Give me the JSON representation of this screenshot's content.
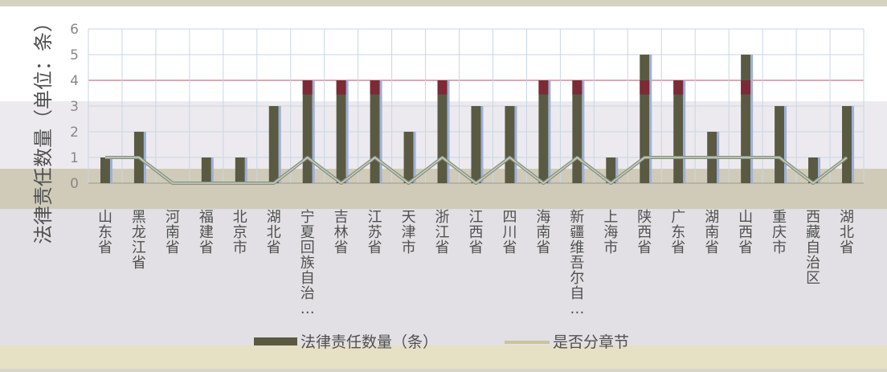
{
  "chart_data": {
    "type": "bar",
    "ylabel": "法律责任数量（单位：条）",
    "ylim": [
      0,
      6
    ],
    "y_ticks": [
      0,
      1,
      2,
      3,
      4,
      5,
      6
    ],
    "categories": [
      "山东省",
      "黑龙江省",
      "河南省",
      "福建省",
      "北京市",
      "湖北省",
      "宁夏回族自治区",
      "吉林省",
      "江苏省",
      "天津市",
      "浙江省",
      "江西省",
      "四川省",
      "海南省",
      "新疆维吾尔自治区",
      "上海市",
      "陕西省",
      "广东省",
      "湖南省",
      "山西省",
      "重庆市",
      "西藏自治区",
      "湖北省"
    ],
    "category_labels": [
      "山东省",
      "黑龙江省",
      "河南省",
      "福建省",
      "北京市",
      "湖北省",
      "宁夏回族自治…",
      "吉林省",
      "江苏省",
      "天津市",
      "浙江省",
      "江西省",
      "四川省",
      "海南省",
      "新疆维吾尔自…",
      "上海市",
      "陕西省",
      "广东省",
      "湖南省",
      "山西省",
      "重庆市",
      "西藏自治区",
      "湖北省"
    ],
    "series": [
      {
        "name": "法律责任数量（条）",
        "type": "bar",
        "color": "#5a5a42",
        "values": [
          1,
          2,
          0,
          1,
          1,
          3,
          4,
          4,
          4,
          2,
          4,
          3,
          3,
          4,
          4,
          1,
          5,
          4,
          2,
          5,
          3,
          1,
          3
        ]
      },
      {
        "name": "是否分章节",
        "type": "line",
        "color": "#c9c49c",
        "values": [
          1,
          1,
          0,
          0,
          0,
          0,
          1,
          0,
          1,
          0,
          1,
          0,
          1,
          0,
          1,
          0,
          1,
          1,
          1,
          1,
          1,
          0,
          1
        ]
      }
    ],
    "legend_position": "bottom",
    "grid": true
  }
}
